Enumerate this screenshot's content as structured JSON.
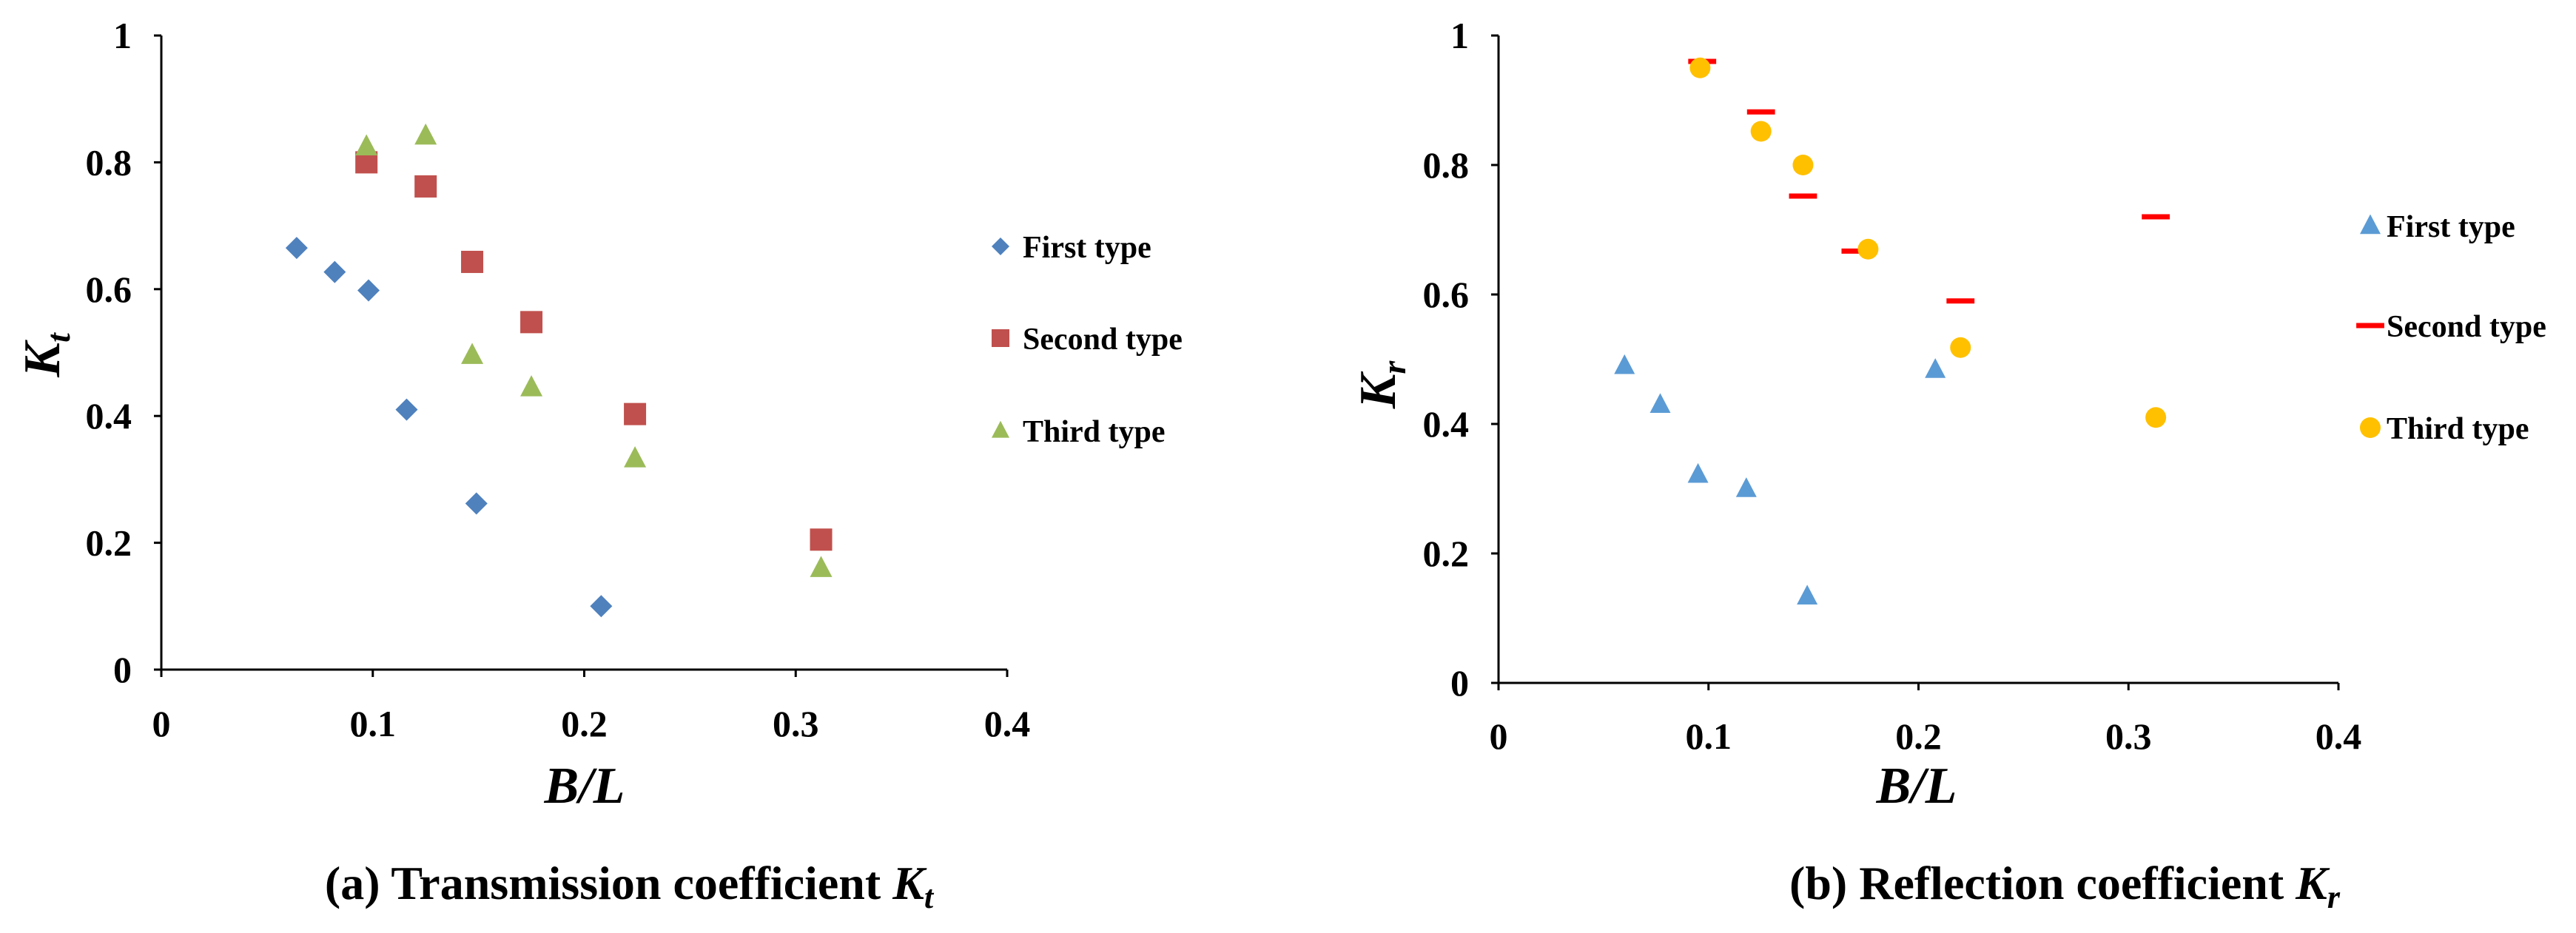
{
  "chart_data": [
    {
      "type": "scatter",
      "xlabel": "B/L",
      "ylabel_symbol": "K",
      "ylabel_sub": "t",
      "xlim": [
        0,
        0.4
      ],
      "ylim": [
        0,
        1
      ],
      "xticks": [
        "0",
        "0.1",
        "0.2",
        "0.3",
        "0.4"
      ],
      "yticks": [
        "0",
        "0.2",
        "0.4",
        "0.6",
        "0.8",
        "1"
      ],
      "caption_text": "(a) Transmission coefficient ",
      "caption_symbol": "K",
      "caption_sub": "t",
      "series": [
        {
          "name": "First type",
          "marker": "diamond",
          "color": "#4F81BD",
          "points": [
            [
              0.064,
              0.665
            ],
            [
              0.082,
              0.627
            ],
            [
              0.098,
              0.598
            ],
            [
              0.116,
              0.41
            ],
            [
              0.149,
              0.262
            ],
            [
              0.208,
              0.1
            ]
          ]
        },
        {
          "name": "Second type",
          "marker": "square",
          "color": "#C0504D",
          "points": [
            [
              0.097,
              0.8
            ],
            [
              0.125,
              0.762
            ],
            [
              0.147,
              0.643
            ],
            [
              0.175,
              0.548
            ],
            [
              0.224,
              0.403
            ],
            [
              0.312,
              0.205
            ]
          ]
        },
        {
          "name": "Third type",
          "marker": "triangle",
          "color": "#9BBB59",
          "points": [
            [
              0.097,
              0.825
            ],
            [
              0.125,
              0.842
            ],
            [
              0.147,
              0.496
            ],
            [
              0.175,
              0.445
            ],
            [
              0.224,
              0.333
            ],
            [
              0.312,
              0.16
            ]
          ]
        }
      ]
    },
    {
      "type": "scatter",
      "xlabel": "B/L",
      "ylabel_symbol": "K",
      "ylabel_sub": "r",
      "xlim": [
        0,
        0.4
      ],
      "ylim": [
        0,
        1
      ],
      "xticks": [
        "0",
        "0.1",
        "0.2",
        "0.3",
        "0.4"
      ],
      "yticks": [
        "0",
        "0.2",
        "0.4",
        "0.6",
        "0.8",
        "1"
      ],
      "caption_text": "(b) Reflection coefficient ",
      "caption_symbol": "K",
      "caption_sub": "r",
      "series": [
        {
          "name": "First type",
          "marker": "triangle",
          "color": "#5B9BD5",
          "points": [
            [
              0.06,
              0.49
            ],
            [
              0.077,
              0.43
            ],
            [
              0.095,
              0.322
            ],
            [
              0.118,
              0.3
            ],
            [
              0.147,
              0.134
            ],
            [
              0.208,
              0.484
            ]
          ]
        },
        {
          "name": "Second type",
          "marker": "dash",
          "color": "#FF0000",
          "points": [
            [
              0.097,
              0.96
            ],
            [
              0.125,
              0.882
            ],
            [
              0.145,
              0.752
            ],
            [
              0.17,
              0.667
            ],
            [
              0.22,
              0.59
            ],
            [
              0.313,
              0.72
            ]
          ]
        },
        {
          "name": "Third type",
          "marker": "circle",
          "color": "#FFC000",
          "points": [
            [
              0.096,
              0.95
            ],
            [
              0.125,
              0.852
            ],
            [
              0.145,
              0.8
            ],
            [
              0.176,
              0.67
            ],
            [
              0.22,
              0.518
            ],
            [
              0.313,
              0.41
            ]
          ]
        }
      ]
    }
  ]
}
